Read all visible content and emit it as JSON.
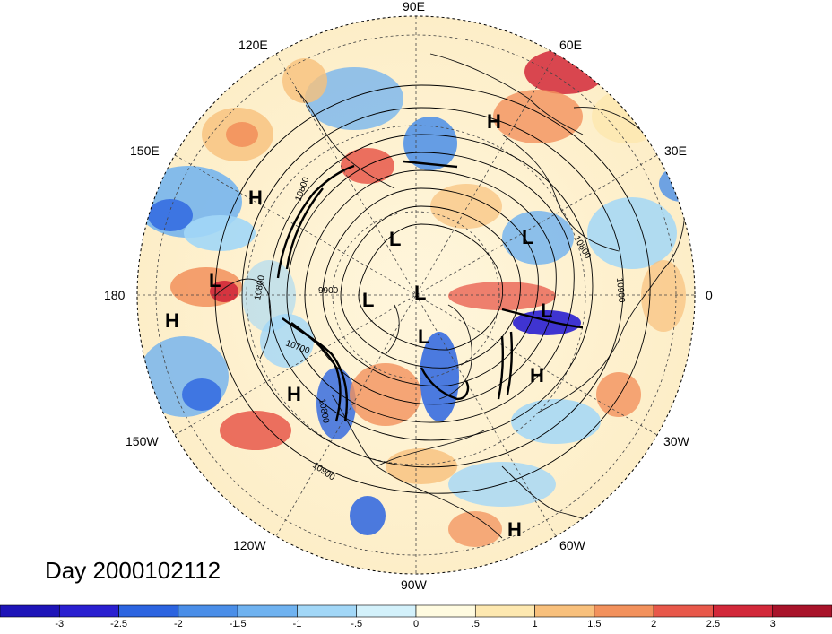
{
  "title": "Day 2000102112",
  "longitude_labels": [
    "90E",
    "60E",
    "30E",
    "0",
    "30W",
    "60W",
    "90W",
    "120W",
    "150W",
    "180",
    "150E",
    "120E"
  ],
  "pressure_systems": [
    {
      "type": "H",
      "text": "H"
    },
    {
      "type": "H",
      "text": "H"
    },
    {
      "type": "H",
      "text": "H"
    },
    {
      "type": "H",
      "text": "H"
    },
    {
      "type": "H",
      "text": "H"
    },
    {
      "type": "H",
      "text": "H"
    },
    {
      "type": "L",
      "text": "L"
    },
    {
      "type": "L",
      "text": "L"
    },
    {
      "type": "L",
      "text": "L"
    },
    {
      "type": "L",
      "text": "L"
    },
    {
      "type": "L",
      "text": "L"
    },
    {
      "type": "L",
      "text": "L"
    },
    {
      "type": "L",
      "text": "L"
    }
  ],
  "contour_labels": [
    "10800",
    "10800",
    "10800",
    "9900",
    "10700",
    "10800",
    "10900",
    "10900"
  ],
  "colorbar": {
    "ticks": [
      "-3",
      "-2.5",
      "-2",
      "-1.5",
      "-1",
      "-.5",
      "0",
      ".5",
      "1",
      "1.5",
      "2",
      "2.5",
      "3"
    ],
    "colors": [
      "#2a1fd0",
      "#2c64e0",
      "#4a8ee8",
      "#6fb2f0",
      "#a2d7f7",
      "#d3f1fb",
      "#fffbe0",
      "#fde8b0",
      "#f8c07c",
      "#f2915c",
      "#e8584a",
      "#d2283a",
      "#a8132a"
    ]
  },
  "map_style": {
    "ocean_fill": "#fff4d8",
    "coast_color": "#111111",
    "contour_color": "#000000",
    "grid_color": "#444444"
  }
}
